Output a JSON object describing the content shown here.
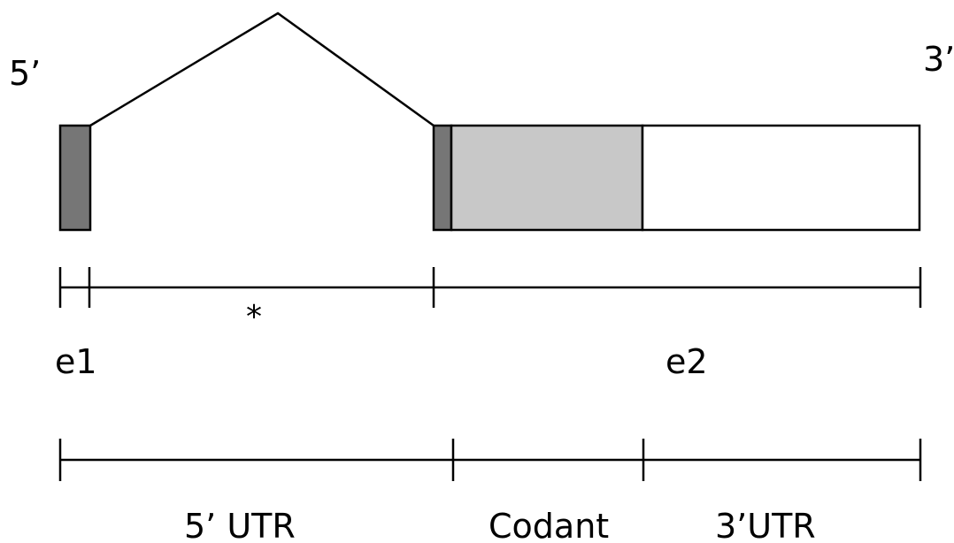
{
  "labels": {
    "five_prime": "5’",
    "three_prime": "3’",
    "star": "*",
    "exon1": "e1",
    "exon2": "e2",
    "utr5": "5’ UTR",
    "coding": "Codant",
    "utr3": "3’UTR"
  },
  "colors": {
    "exon_dark": "#767676",
    "coding_fill": "#c8c8c8",
    "utr3_fill": "#ffffff",
    "stroke": "#000000"
  }
}
